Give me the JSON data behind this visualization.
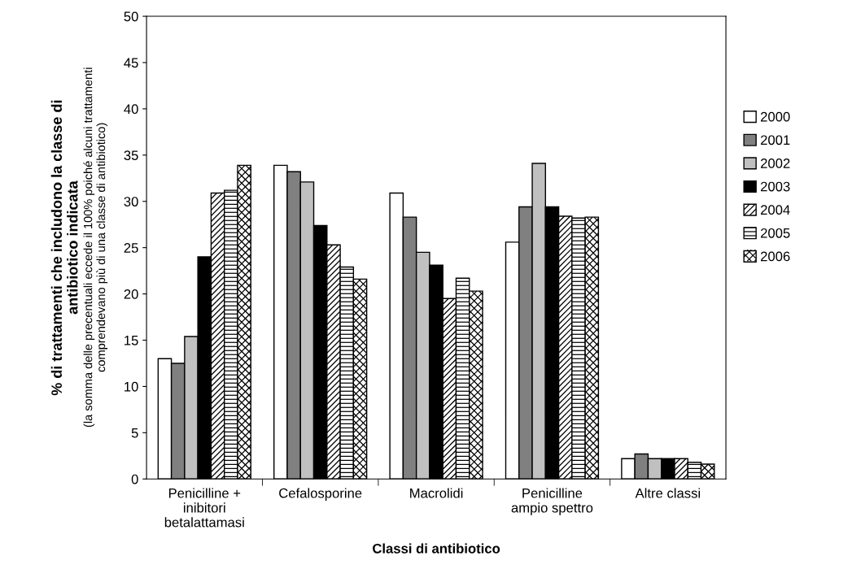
{
  "chart_data": {
    "type": "bar",
    "xlabel": "Classi di antibiotico",
    "ylabel": "% di trattamenti che includono la classe di\nantibiotico indicata",
    "annotations": [
      "(la somma delle precentuali eccede il 100% poiché alcuni trattamenti\ncomprendevano più di una classe di antibiotico)"
    ],
    "categories": [
      "Penicilline +\ninibitori\nbetalattamasi",
      "Cefalosporine",
      "Macrolidi",
      "Penicilline\nampio spettro",
      "Altre classi"
    ],
    "series": [
      {
        "name": "2000",
        "color": "#ffffff",
        "values": [
          13.0,
          33.9,
          30.9,
          25.6,
          2.2
        ]
      },
      {
        "name": "2001",
        "color": "#808080",
        "values": [
          12.5,
          33.2,
          28.3,
          29.4,
          2.7
        ]
      },
      {
        "name": "2002",
        "color": "#c0c0c0",
        "values": [
          15.4,
          32.1,
          24.5,
          34.1,
          2.2
        ]
      },
      {
        "name": "2003",
        "color": "#000000",
        "values": [
          24.0,
          27.4,
          23.1,
          29.4,
          2.2
        ]
      },
      {
        "name": "2004",
        "color": "#ffffff",
        "values": [
          30.9,
          25.3,
          19.5,
          28.4,
          2.2
        ]
      },
      {
        "name": "2005",
        "color": "#ffffff",
        "values": [
          31.2,
          22.9,
          21.7,
          28.2,
          1.8
        ]
      },
      {
        "name": "2006",
        "color": "#ffffff",
        "values": [
          33.9,
          21.6,
          20.3,
          28.3,
          1.6
        ]
      }
    ],
    "ylim": [
      0,
      50
    ],
    "yticks": [
      0,
      5,
      10,
      15,
      20,
      25,
      30,
      35,
      40,
      45,
      50
    ],
    "grid": false,
    "legend": "right"
  }
}
